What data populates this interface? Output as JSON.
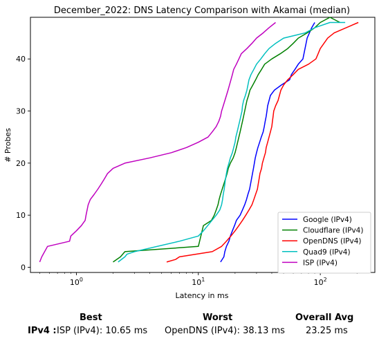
{
  "chart_data": {
    "type": "line",
    "title": "December_2022: DNS Latency Comparison with Akamai (median)",
    "xlabel": "Latency in ms",
    "ylabel": "# Probes",
    "xscale": "log",
    "xlim": [
      0.42,
      280
    ],
    "ylim": [
      -1,
      48
    ],
    "xticks": [
      {
        "value": 1,
        "label": "10",
        "sup": "0"
      },
      {
        "value": 10,
        "label": "10",
        "sup": "1"
      },
      {
        "value": 100,
        "label": "10",
        "sup": "2"
      }
    ],
    "yticks": [
      0,
      10,
      20,
      30,
      40
    ],
    "grid": false,
    "legend_position": "lower-right",
    "series": [
      {
        "name": "Google (IPv4)",
        "color": "#0000ff",
        "x": [
          15.2,
          16.2,
          16.5,
          17.0,
          17.8,
          18.3,
          19.0,
          19.8,
          20.5,
          22.0,
          23.0,
          24.0,
          24.8,
          25.5,
          26.3,
          26.8,
          27.3,
          27.8,
          28.3,
          28.8,
          29.3,
          30.0,
          30.8,
          31.8,
          32.8,
          34.0,
          34.7,
          35.3,
          36.0,
          36.5,
          37.0,
          38.0,
          39.0,
          42.0,
          48.0,
          56.0,
          58.0,
          62.0,
          66.0,
          72.0,
          78.0,
          85.0,
          90.0
        ],
        "y": [
          1,
          2,
          3,
          4,
          5,
          6,
          7,
          8,
          9,
          10,
          11,
          12,
          13,
          14,
          15,
          16,
          17,
          18,
          19,
          20,
          21,
          22,
          23,
          24,
          25,
          26,
          27,
          28,
          29,
          30,
          31,
          32,
          33,
          34,
          35,
          36,
          37,
          38,
          39,
          40,
          44,
          46,
          47
        ]
      },
      {
        "name": "Cloudflare (IPv4)",
        "color": "#008000",
        "x": [
          2.0,
          2.3,
          2.5,
          10.0,
          11.0,
          12.8,
          13.5,
          14.0,
          14.5,
          14.8,
          15.2,
          15.7,
          16.2,
          16.7,
          17.2,
          17.6,
          18.3,
          19.3,
          20.0,
          20.5,
          21.0,
          21.5,
          22.0,
          22.5,
          23.0,
          23.5,
          24.0,
          24.5,
          25.0,
          25.8,
          26.5,
          28.0,
          29.5,
          31.0,
          33.0,
          35.0,
          40.0,
          47.0,
          54.0,
          60.0,
          66.0,
          78.0,
          90.0,
          100.0,
          120.0,
          145.0
        ],
        "y": [
          1,
          2,
          3,
          4,
          8,
          9,
          10,
          11,
          12,
          13,
          14,
          15,
          16,
          17,
          18,
          19,
          20,
          21,
          22,
          23,
          24,
          25,
          26,
          27,
          28,
          29,
          30,
          31,
          32,
          33,
          34,
          35,
          36,
          37,
          38,
          39,
          40,
          41,
          42,
          43,
          44,
          45,
          46,
          47,
          48,
          47
        ]
      },
      {
        "name": "OpenDNS (IPv4)",
        "color": "#ff0000",
        "x": [
          5.5,
          6.5,
          7.0,
          13.0,
          15.5,
          17.0,
          18.5,
          20.0,
          21.5,
          23.0,
          24.5,
          26.0,
          27.5,
          28.5,
          29.5,
          30.5,
          31.0,
          31.5,
          32.0,
          33.0,
          33.5,
          34.5,
          35.5,
          36.0,
          37.0,
          38.0,
          39.0,
          40.0,
          40.5,
          41.0,
          41.5,
          43.0,
          45.0,
          47.5,
          50.0,
          54.0,
          60.0,
          66.0,
          80.0,
          92.0,
          96.0,
          100.0,
          115.0,
          130.0,
          205.0
        ],
        "y": [
          1,
          1.5,
          2,
          3,
          4,
          5,
          6,
          7,
          8,
          9,
          10,
          11,
          12,
          13,
          14,
          15,
          16,
          17,
          18,
          19,
          20,
          21,
          22,
          23,
          24,
          25,
          26,
          27,
          28,
          29,
          30,
          31,
          32,
          34,
          35,
          36,
          37,
          38,
          39,
          40,
          41,
          42,
          44,
          45,
          47
        ]
      },
      {
        "name": "Quad9 (IPv4)",
        "color": "#00bfbf",
        "x": [
          2.2,
          2.5,
          2.6,
          3.0,
          7.0,
          10.0,
          11.0,
          14.0,
          15.0,
          15.5,
          15.8,
          16.0,
          16.3,
          16.5,
          16.7,
          17.0,
          17.3,
          17.8,
          18.3,
          19.0,
          19.5,
          20.0,
          20.3,
          20.8,
          21.3,
          21.8,
          22.3,
          22.8,
          23.0,
          23.5,
          24.3,
          25.0,
          25.5,
          26.0,
          27.0,
          28.5,
          30.0,
          32.5,
          35.0,
          38.0,
          43.0,
          50.0,
          75.0,
          90.0,
          120.0,
          160.0
        ],
        "y": [
          1,
          2,
          2.5,
          3,
          5,
          6,
          7,
          10,
          11,
          12,
          13,
          14,
          15,
          16,
          17,
          18,
          19,
          20,
          21,
          22,
          23,
          24,
          25,
          26,
          27,
          28,
          29,
          30,
          31,
          32,
          33,
          34,
          35,
          36,
          37,
          38,
          39,
          40,
          41,
          42,
          43,
          44,
          45,
          46,
          47,
          47
        ]
      },
      {
        "name": "ISP (IPv4)",
        "color": "#bf00bf",
        "x": [
          0.5,
          0.52,
          0.58,
          0.88,
          0.9,
          1.0,
          1.1,
          1.18,
          1.2,
          1.25,
          1.3,
          1.4,
          1.5,
          1.6,
          1.7,
          1.8,
          2.0,
          2.5,
          4.0,
          6.0,
          8.0,
          10.0,
          12.0,
          13.0,
          14.0,
          14.7,
          15.2,
          15.5,
          16.0,
          16.5,
          17.0,
          17.5,
          18.0,
          18.5,
          19.0,
          19.5,
          20.5,
          21.5,
          22.5,
          25.0,
          27.5,
          30.0,
          34.0,
          38.0,
          43.0
        ],
        "y": [
          1,
          2,
          4,
          5,
          6,
          7,
          8,
          9,
          10,
          12,
          13,
          14,
          15,
          16,
          17,
          18,
          19,
          20,
          21,
          22,
          23,
          24,
          25,
          26,
          27,
          28,
          29,
          30,
          31,
          32,
          33,
          34,
          35,
          36,
          37,
          38,
          39,
          40,
          41,
          42,
          43,
          44,
          45,
          46,
          47
        ]
      }
    ]
  },
  "stats": {
    "headers": {
      "best": "Best",
      "worst": "Worst",
      "avg": "Overall Avg"
    },
    "row_label": "IPv4 :",
    "best": "ISP (IPv4): 10.65 ms",
    "worst": "OpenDNS (IPv4): 38.13 ms",
    "avg": "23.25 ms"
  }
}
